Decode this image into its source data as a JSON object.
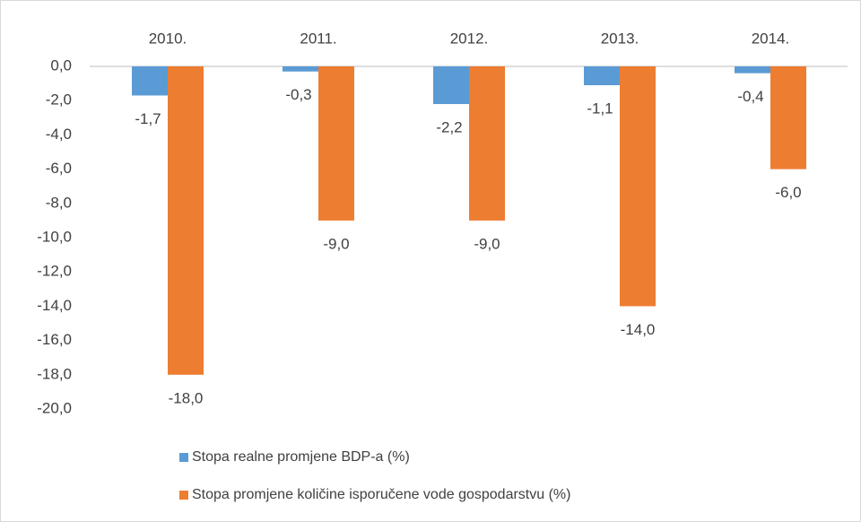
{
  "chart_data": {
    "type": "bar",
    "categories": [
      "2010.",
      "2011.",
      "2012.",
      "2013.",
      "2014."
    ],
    "series": [
      {
        "name": "Stopa realne promjene BDP-a (%)",
        "color": "#5b9bd5",
        "values": [
          -1.7,
          -0.3,
          -2.2,
          -1.1,
          -0.4
        ],
        "value_labels": [
          "-1,7",
          "-0,3",
          "-2,2",
          "-1,1",
          "-0,4"
        ]
      },
      {
        "name": "Stopa promjene količine isporučene vode gospodarstvu (%)",
        "color": "#ed7d31",
        "values": [
          -18.0,
          -9.0,
          -9.0,
          -14.0,
          -6.0
        ],
        "value_labels": [
          "-18,0",
          "-9,0",
          "-9,0",
          "-14,0",
          "-6,0"
        ]
      }
    ],
    "ylim": [
      -20,
      0
    ],
    "yticks": [
      {
        "value": 0,
        "label": "0,0"
      },
      {
        "value": -2,
        "label": "-2,0"
      },
      {
        "value": -4,
        "label": "-4,0"
      },
      {
        "value": -6,
        "label": "-6,0"
      },
      {
        "value": -8,
        "label": "-8,0"
      },
      {
        "value": -10,
        "label": "-10,0"
      },
      {
        "value": -12,
        "label": "-12,0"
      },
      {
        "value": -14,
        "label": "-14,0"
      },
      {
        "value": -16,
        "label": "-16,0"
      },
      {
        "value": -18,
        "label": "-18,0"
      },
      {
        "value": -20,
        "label": "-20,0"
      }
    ],
    "grid": false
  }
}
